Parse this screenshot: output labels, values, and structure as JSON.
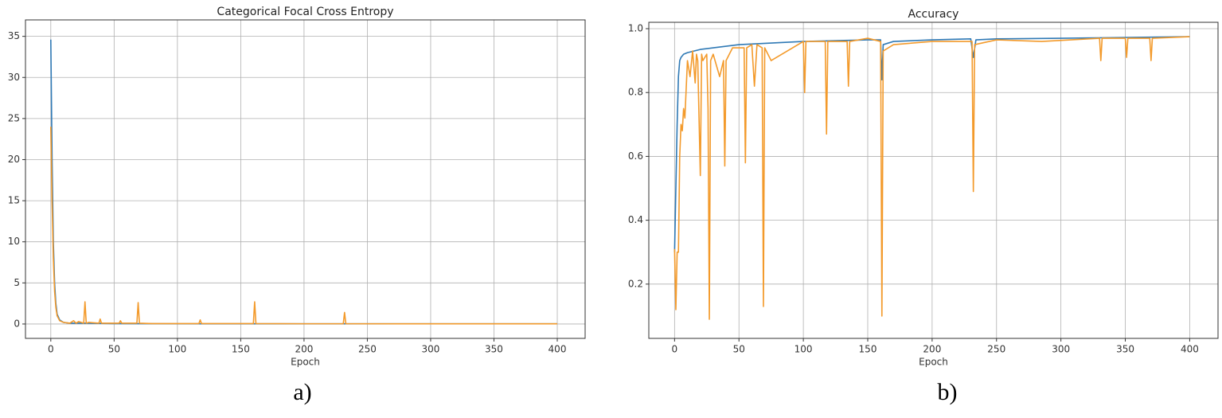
{
  "chart_data": [
    {
      "type": "line",
      "title": "Categorical Focal Cross Entropy",
      "x_label": "Epoch",
      "caption": "a)",
      "xlim": [
        -20,
        422
      ],
      "xticks": [
        0,
        50,
        100,
        150,
        200,
        250,
        300,
        350,
        400
      ],
      "ylim": [
        -1.75,
        37
      ],
      "yticks": [
        0,
        5,
        10,
        15,
        20,
        25,
        30,
        35
      ],
      "grid": true,
      "series": [
        {
          "color": "#2f79b5",
          "x": [
            0,
            1,
            2,
            3,
            4,
            5,
            7,
            10,
            15,
            20,
            30,
            50,
            100,
            200,
            300,
            400
          ],
          "values": [
            34.6,
            20,
            10,
            5,
            2.5,
            1.2,
            0.5,
            0.2,
            0.1,
            0.1,
            0.1,
            0.05,
            0.03,
            0.02,
            0.02,
            0.02
          ]
        },
        {
          "color": "#f39a2b",
          "x": [
            0,
            1,
            2,
            3,
            4,
            5,
            7,
            10,
            15,
            18,
            20,
            22,
            26,
            27,
            28,
            30,
            38,
            39,
            40,
            50,
            54,
            55,
            56,
            68,
            69,
            70,
            80,
            100,
            117,
            118,
            119,
            150,
            160,
            161,
            162,
            200,
            231,
            232,
            233,
            300,
            400
          ],
          "values": [
            24,
            15,
            8,
            4,
            2,
            1,
            0.4,
            0.2,
            0.1,
            0.4,
            0.1,
            0.3,
            0.1,
            2.7,
            0.1,
            0.2,
            0.1,
            0.6,
            0.1,
            0.1,
            0.1,
            0.4,
            0.1,
            0.1,
            2.6,
            0.1,
            0.05,
            0.05,
            0.05,
            0.5,
            0.05,
            0.05,
            0.05,
            2.7,
            0.05,
            0.03,
            0.03,
            1.4,
            0.03,
            0.02,
            0.02
          ]
        }
      ]
    },
    {
      "type": "line",
      "title": "Accuracy",
      "x_label": "Epoch",
      "caption": "b)",
      "xlim": [
        -20,
        422
      ],
      "xticks": [
        0,
        50,
        100,
        150,
        200,
        250,
        300,
        350,
        400
      ],
      "ylim": [
        0.03,
        1.02
      ],
      "yticks": [
        0.2,
        0.4,
        0.6,
        0.8,
        {
          "value": 1.0,
          "label": "1.0"
        }
      ],
      "grid": true,
      "series": [
        {
          "color": "#2f79b5",
          "x": [
            0,
            1,
            2,
            3,
            4,
            5,
            7,
            10,
            15,
            20,
            30,
            50,
            100,
            150,
            160,
            161,
            162,
            170,
            200,
            230,
            232,
            234,
            250,
            300,
            400
          ],
          "values": [
            0.3,
            0.5,
            0.7,
            0.85,
            0.9,
            0.91,
            0.92,
            0.925,
            0.93,
            0.935,
            0.94,
            0.95,
            0.96,
            0.965,
            0.965,
            0.84,
            0.95,
            0.96,
            0.965,
            0.968,
            0.91,
            0.965,
            0.968,
            0.97,
            0.975
          ]
        },
        {
          "color": "#f39a2b",
          "x": [
            0,
            1,
            2,
            3,
            4,
            5,
            6,
            7,
            8,
            10,
            12,
            14,
            16,
            17,
            18,
            20,
            21,
            22,
            25,
            26,
            27,
            28,
            30,
            35,
            38,
            39,
            40,
            45,
            54,
            55,
            56,
            60,
            62,
            64,
            68,
            69,
            70,
            75,
            100,
            101,
            102,
            117,
            118,
            119,
            134,
            135,
            136,
            150,
            160,
            161,
            162,
            170,
            200,
            231,
            232,
            233,
            250,
            285,
            330,
            331,
            332,
            350,
            351,
            352,
            369,
            370,
            371,
            400
          ],
          "values": [
            0.31,
            0.12,
            0.3,
            0.3,
            0.6,
            0.7,
            0.68,
            0.75,
            0.72,
            0.9,
            0.85,
            0.93,
            0.83,
            0.92,
            0.9,
            0.54,
            0.92,
            0.9,
            0.92,
            0.75,
            0.09,
            0.9,
            0.92,
            0.85,
            0.9,
            0.57,
            0.9,
            0.94,
            0.94,
            0.58,
            0.94,
            0.95,
            0.82,
            0.95,
            0.94,
            0.13,
            0.94,
            0.9,
            0.96,
            0.8,
            0.96,
            0.96,
            0.67,
            0.96,
            0.96,
            0.82,
            0.96,
            0.97,
            0.96,
            0.1,
            0.93,
            0.95,
            0.96,
            0.96,
            0.49,
            0.95,
            0.965,
            0.96,
            0.97,
            0.9,
            0.97,
            0.97,
            0.91,
            0.97,
            0.97,
            0.9,
            0.97,
            0.975
          ]
        }
      ]
    }
  ]
}
